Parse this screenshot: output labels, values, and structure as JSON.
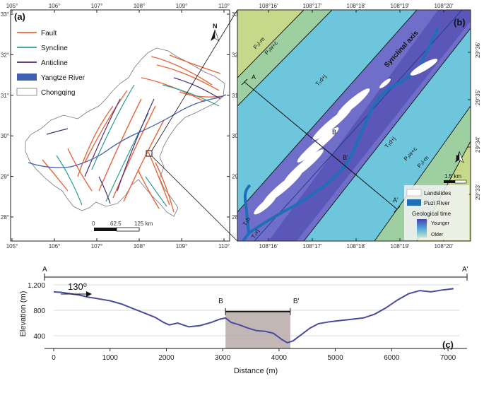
{
  "panel_a": {
    "label": "(a)",
    "x_ticks": [
      "105°",
      "106°",
      "107°",
      "108°",
      "109°",
      "110°"
    ],
    "y_ticks": [
      "33°",
      "32°",
      "31°",
      "30°",
      "29°",
      "28°"
    ],
    "legend": [
      {
        "label": "Fault",
        "color": "#e8663b"
      },
      {
        "label": "Syncline",
        "color": "#2a9d8f"
      },
      {
        "label": "Anticline",
        "color": "#4b2a7a"
      },
      {
        "label": "Yangtze River",
        "color": "#3f5fb0"
      },
      {
        "label": "Chongqing",
        "color": "#ffffff"
      }
    ],
    "north": "N",
    "scale": [
      "0",
      "62.5",
      "125 km"
    ]
  },
  "panel_b": {
    "label": "(b)",
    "x_ticks": [
      "108°16'",
      "108°17'",
      "108°18'",
      "108°19'",
      "108°20'"
    ],
    "y_ticks": [
      "29°36'",
      "29°35'",
      "29°34'",
      "29°33'"
    ],
    "axis_label": "Synclinal axis",
    "formations": [
      "P₂l-m",
      "P₃w+c",
      "T₁d+j",
      "T₁d+j",
      "P₃w+c",
      "P₂l-m",
      "T₂b",
      "T₂xj"
    ],
    "points": [
      "A",
      "B",
      "B'",
      "A'"
    ],
    "north": "N",
    "scale": "1.5 km",
    "legend": [
      {
        "label": "Landslides",
        "color": "#ffffff"
      },
      {
        "label": "Puzi River",
        "color": "#1f6fb8"
      }
    ],
    "geo_time": {
      "title": "Geological time",
      "younger": "Younger",
      "older": "Older"
    }
  },
  "panel_c": {
    "label": "(c)",
    "start": "A",
    "end": "A'",
    "segment": [
      "B",
      "B'"
    ],
    "direction": "130⁰",
    "xlabel": "Distance (m)",
    "ylabel": "Elevation (m)"
  },
  "chart_data": {
    "type": "line",
    "xlabel": "Distance (m)",
    "ylabel": "Elevation (m)",
    "xlim": [
      0,
      7200
    ],
    "ylim": [
      200,
      1300
    ],
    "x_ticks": [
      0,
      1000,
      2000,
      3000,
      4000,
      5000,
      6000,
      7000
    ],
    "y_ticks": [
      400,
      800,
      1200
    ],
    "series": [
      {
        "x": [
          0,
          150,
          300,
          450,
          600,
          800,
          1000,
          1200,
          1400,
          1600,
          1800,
          1950,
          2050,
          2200,
          2400,
          2600,
          2800,
          2950,
          3050,
          3150,
          3300,
          3450,
          3600,
          3750,
          3900,
          4050,
          4150,
          4250,
          4400,
          4550,
          4700,
          4900,
          5100,
          5300,
          5500,
          5700,
          5900,
          6100,
          6300,
          6500,
          6700,
          6900,
          7100
        ],
        "y": [
          1090,
          1080,
          1060,
          1040,
          1010,
          980,
          950,
          900,
          830,
          760,
          690,
          610,
          570,
          600,
          540,
          560,
          610,
          660,
          680,
          610,
          570,
          520,
          480,
          470,
          440,
          340,
          290,
          320,
          420,
          520,
          590,
          620,
          640,
          660,
          680,
          740,
          840,
          960,
          1060,
          1110,
          1090,
          1120,
          1140
        ]
      }
    ],
    "highlight": {
      "x_from": 3050,
      "x_to": 4200
    }
  }
}
